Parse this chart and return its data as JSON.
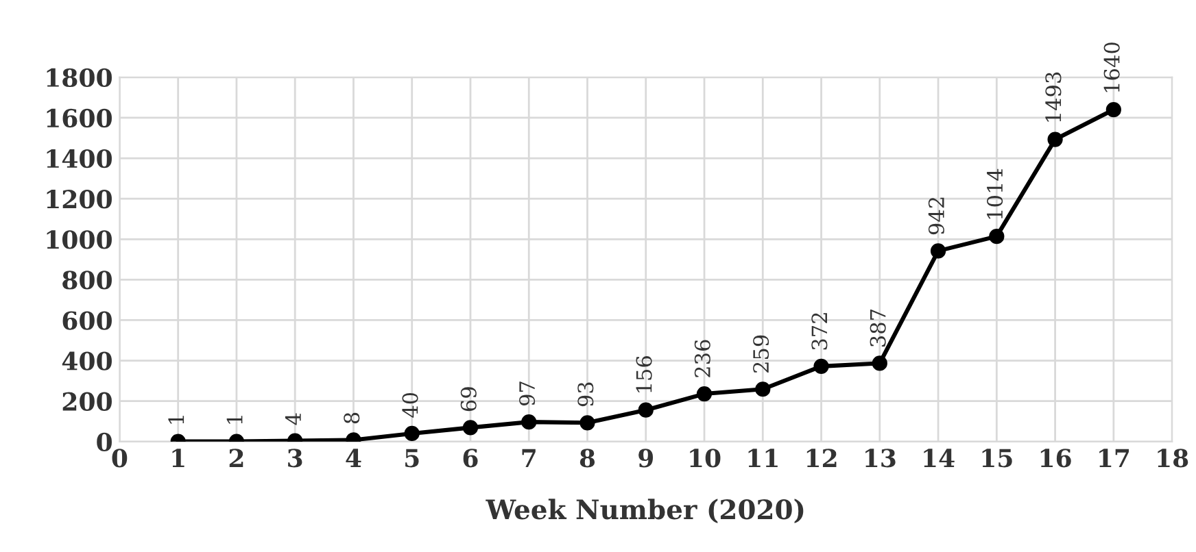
{
  "chart_data": {
    "type": "line",
    "xlabel": "Week Number (2020)",
    "x": [
      1,
      2,
      3,
      4,
      5,
      6,
      7,
      8,
      9,
      10,
      11,
      12,
      13,
      14,
      15,
      16,
      17
    ],
    "series": [
      {
        "color": "#000000",
        "values": [
          1,
          1,
          4,
          8,
          40,
          69,
          97,
          93,
          156,
          236,
          259,
          372,
          387,
          942,
          1014,
          1493,
          1640
        ]
      }
    ],
    "xlim": [
      0,
      18
    ],
    "xticks": [
      0,
      1,
      2,
      3,
      4,
      5,
      6,
      7,
      8,
      9,
      10,
      11,
      12,
      13,
      14,
      15,
      16,
      17,
      18
    ],
    "ylim": [
      0,
      1800
    ],
    "yticks": [
      0,
      200,
      400,
      600,
      800,
      1000,
      1200,
      1400,
      1600,
      1800
    ],
    "grid": true,
    "marker": "circle",
    "line_style": "solid",
    "data_labels": true
  }
}
